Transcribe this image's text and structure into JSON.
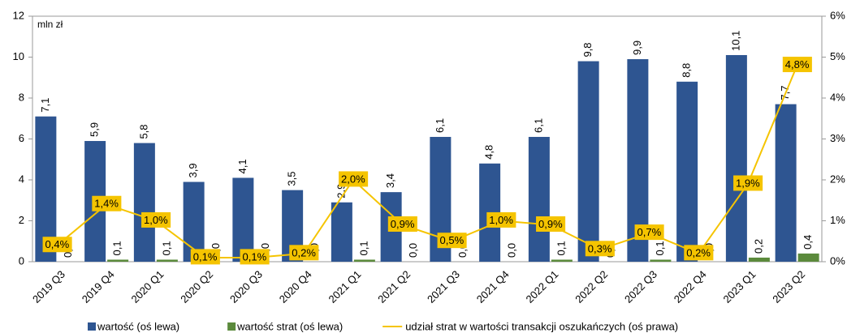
{
  "chart_data": {
    "type": "bar",
    "y_axis_label": "mln zł",
    "categories": [
      "2019 Q3",
      "2019 Q4",
      "2020 Q1",
      "2020 Q2",
      "2020 Q3",
      "2020 Q4",
      "2021 Q1",
      "2021 Q2",
      "2021 Q3",
      "2021 Q4",
      "2022 Q1",
      "2022 Q2",
      "2022 Q3",
      "2022 Q4",
      "2023 Q1",
      "2023 Q2"
    ],
    "series": [
      {
        "name": "wartość (oś lewa)",
        "type": "bar",
        "color": "#2e5591",
        "values": [
          7.1,
          5.9,
          5.8,
          3.9,
          4.1,
          3.5,
          2.9,
          3.4,
          6.1,
          4.8,
          6.1,
          9.8,
          9.9,
          8.8,
          10.1,
          7.7
        ],
        "value_labels": [
          "7,1",
          "5,9",
          "5,8",
          "3,9",
          "4,1",
          "3,5",
          "2,9",
          "3,4",
          "6,1",
          "4,8",
          "6,1",
          "9,8",
          "9,9",
          "8,8",
          "10,1",
          "7,7"
        ]
      },
      {
        "name": "wartość strat (oś lewa)",
        "type": "bar",
        "color": "#5b8a3c",
        "values": [
          0.0,
          0.1,
          0.1,
          0.0,
          0.0,
          0.0,
          0.1,
          0.0,
          0.0,
          0.0,
          0.1,
          0.0,
          0.1,
          0.0,
          0.2,
          0.4
        ],
        "value_labels": [
          "0,0",
          "0,1",
          "0,1",
          "0,0",
          "0,0",
          "0,0",
          "0,1",
          "0,0",
          "0,0",
          "0,0",
          "0,1",
          "0,0",
          "0,1",
          "0,0",
          "0,2",
          "0,4"
        ]
      },
      {
        "name": "udział strat w wartości transakcji oszukańczych (oś prawa)",
        "type": "line",
        "axis": "y2",
        "color": "#f5c400",
        "values": [
          0.4,
          1.4,
          1.0,
          0.1,
          0.1,
          0.2,
          2.0,
          0.9,
          0.5,
          1.0,
          0.9,
          0.3,
          0.7,
          0.2,
          1.9,
          4.8
        ],
        "value_labels": [
          "0,4%",
          "1,4%",
          "1,0%",
          "0,1%",
          "0,1%",
          "0,2%",
          "2,0%",
          "0,9%",
          "0,5%",
          "1,0%",
          "0,9%",
          "0,3%",
          "0,7%",
          "0,2%",
          "1,9%",
          "4,8%"
        ]
      }
    ],
    "ylim": [
      0,
      12
    ],
    "yticks": [
      0,
      2,
      4,
      6,
      8,
      10,
      12
    ],
    "y2lim": [
      0,
      6
    ],
    "y2ticks": [
      {
        "value": 0,
        "label": "0%"
      },
      {
        "value": 1,
        "label": "1%"
      },
      {
        "value": 2,
        "label": "2%"
      },
      {
        "value": 3,
        "label": "3%"
      },
      {
        "value": 4,
        "label": "4%"
      },
      {
        "value": 5,
        "label": "5%"
      },
      {
        "value": 6,
        "label": "6%"
      }
    ],
    "grid": false,
    "legend": "bottom"
  }
}
